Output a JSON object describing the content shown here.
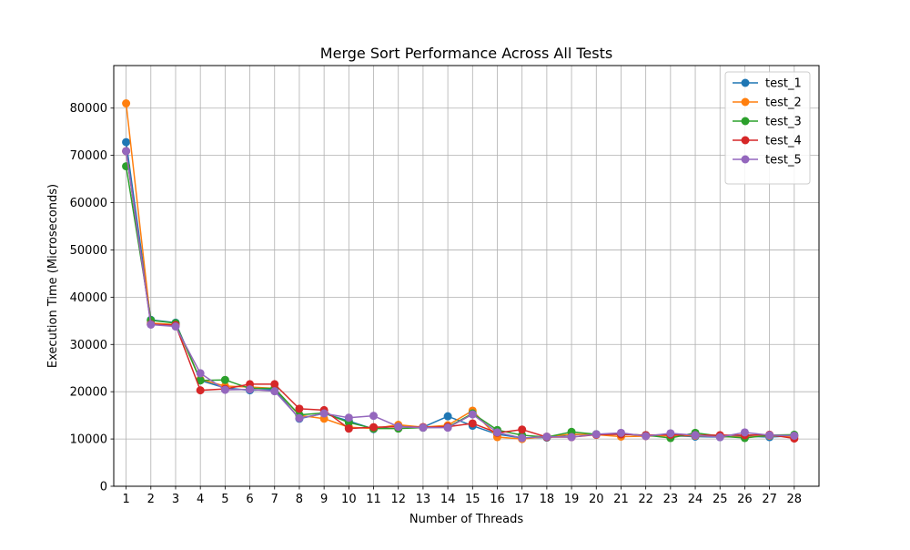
{
  "chart_data": {
    "type": "line",
    "title": "Merge Sort Performance Across All Tests",
    "xlabel": "Number of Threads",
    "ylabel": "Execution Time (Microseconds)",
    "x": [
      1,
      2,
      3,
      4,
      5,
      6,
      7,
      8,
      9,
      10,
      11,
      12,
      13,
      14,
      15,
      16,
      17,
      18,
      19,
      20,
      21,
      22,
      23,
      24,
      25,
      26,
      27,
      28
    ],
    "xlim": [
      0.5,
      29.0
    ],
    "ylim": [
      0,
      89000
    ],
    "yticks": [
      0,
      10000,
      20000,
      30000,
      40000,
      50000,
      60000,
      70000,
      80000
    ],
    "grid": true,
    "legend_position": "top-right",
    "series": [
      {
        "name": "test_1",
        "color": "#1f77b4",
        "values": [
          72800,
          35200,
          34600,
          22400,
          20800,
          20300,
          20500,
          14300,
          15400,
          13800,
          12100,
          12800,
          12500,
          14800,
          12800,
          11000,
          10200,
          10300,
          10900,
          11000,
          11000,
          10800,
          10700,
          10500,
          10400,
          10600,
          10400,
          10700
        ]
      },
      {
        "name": "test_2",
        "color": "#ff7f0e",
        "values": [
          81000,
          34500,
          34200,
          22600,
          21200,
          21000,
          20700,
          15000,
          14300,
          12500,
          12200,
          13000,
          12500,
          12900,
          16000,
          10400,
          10000,
          10500,
          11000,
          10900,
          10500,
          10600,
          10700,
          10700,
          10500,
          10400,
          10700,
          10500
        ]
      },
      {
        "name": "test_3",
        "color": "#2ca02c",
        "values": [
          67700,
          35100,
          34500,
          22400,
          22500,
          20700,
          20700,
          15100,
          15500,
          13500,
          12200,
          12200,
          12400,
          12500,
          15400,
          11900,
          10800,
          10400,
          11500,
          11000,
          11000,
          10800,
          10200,
          11300,
          10600,
          10200,
          10800,
          10900
        ]
      },
      {
        "name": "test_4",
        "color": "#d62728",
        "values": [
          70900,
          34300,
          34100,
          20300,
          20600,
          21600,
          21600,
          16400,
          16100,
          12200,
          12500,
          12600,
          12500,
          12600,
          13300,
          11300,
          12000,
          10400,
          10400,
          10900,
          11000,
          10800,
          10900,
          10800,
          10800,
          10800,
          10900,
          10100
        ]
      },
      {
        "name": "test_5",
        "color": "#9467bd",
        "values": [
          70900,
          34200,
          33800,
          23900,
          20400,
          20500,
          20100,
          14400,
          15400,
          14500,
          14900,
          12600,
          12400,
          12400,
          15200,
          11400,
          10200,
          10500,
          10400,
          11000,
          11300,
          10600,
          11200,
          10800,
          10400,
          11400,
          10800,
          10700
        ]
      }
    ]
  }
}
